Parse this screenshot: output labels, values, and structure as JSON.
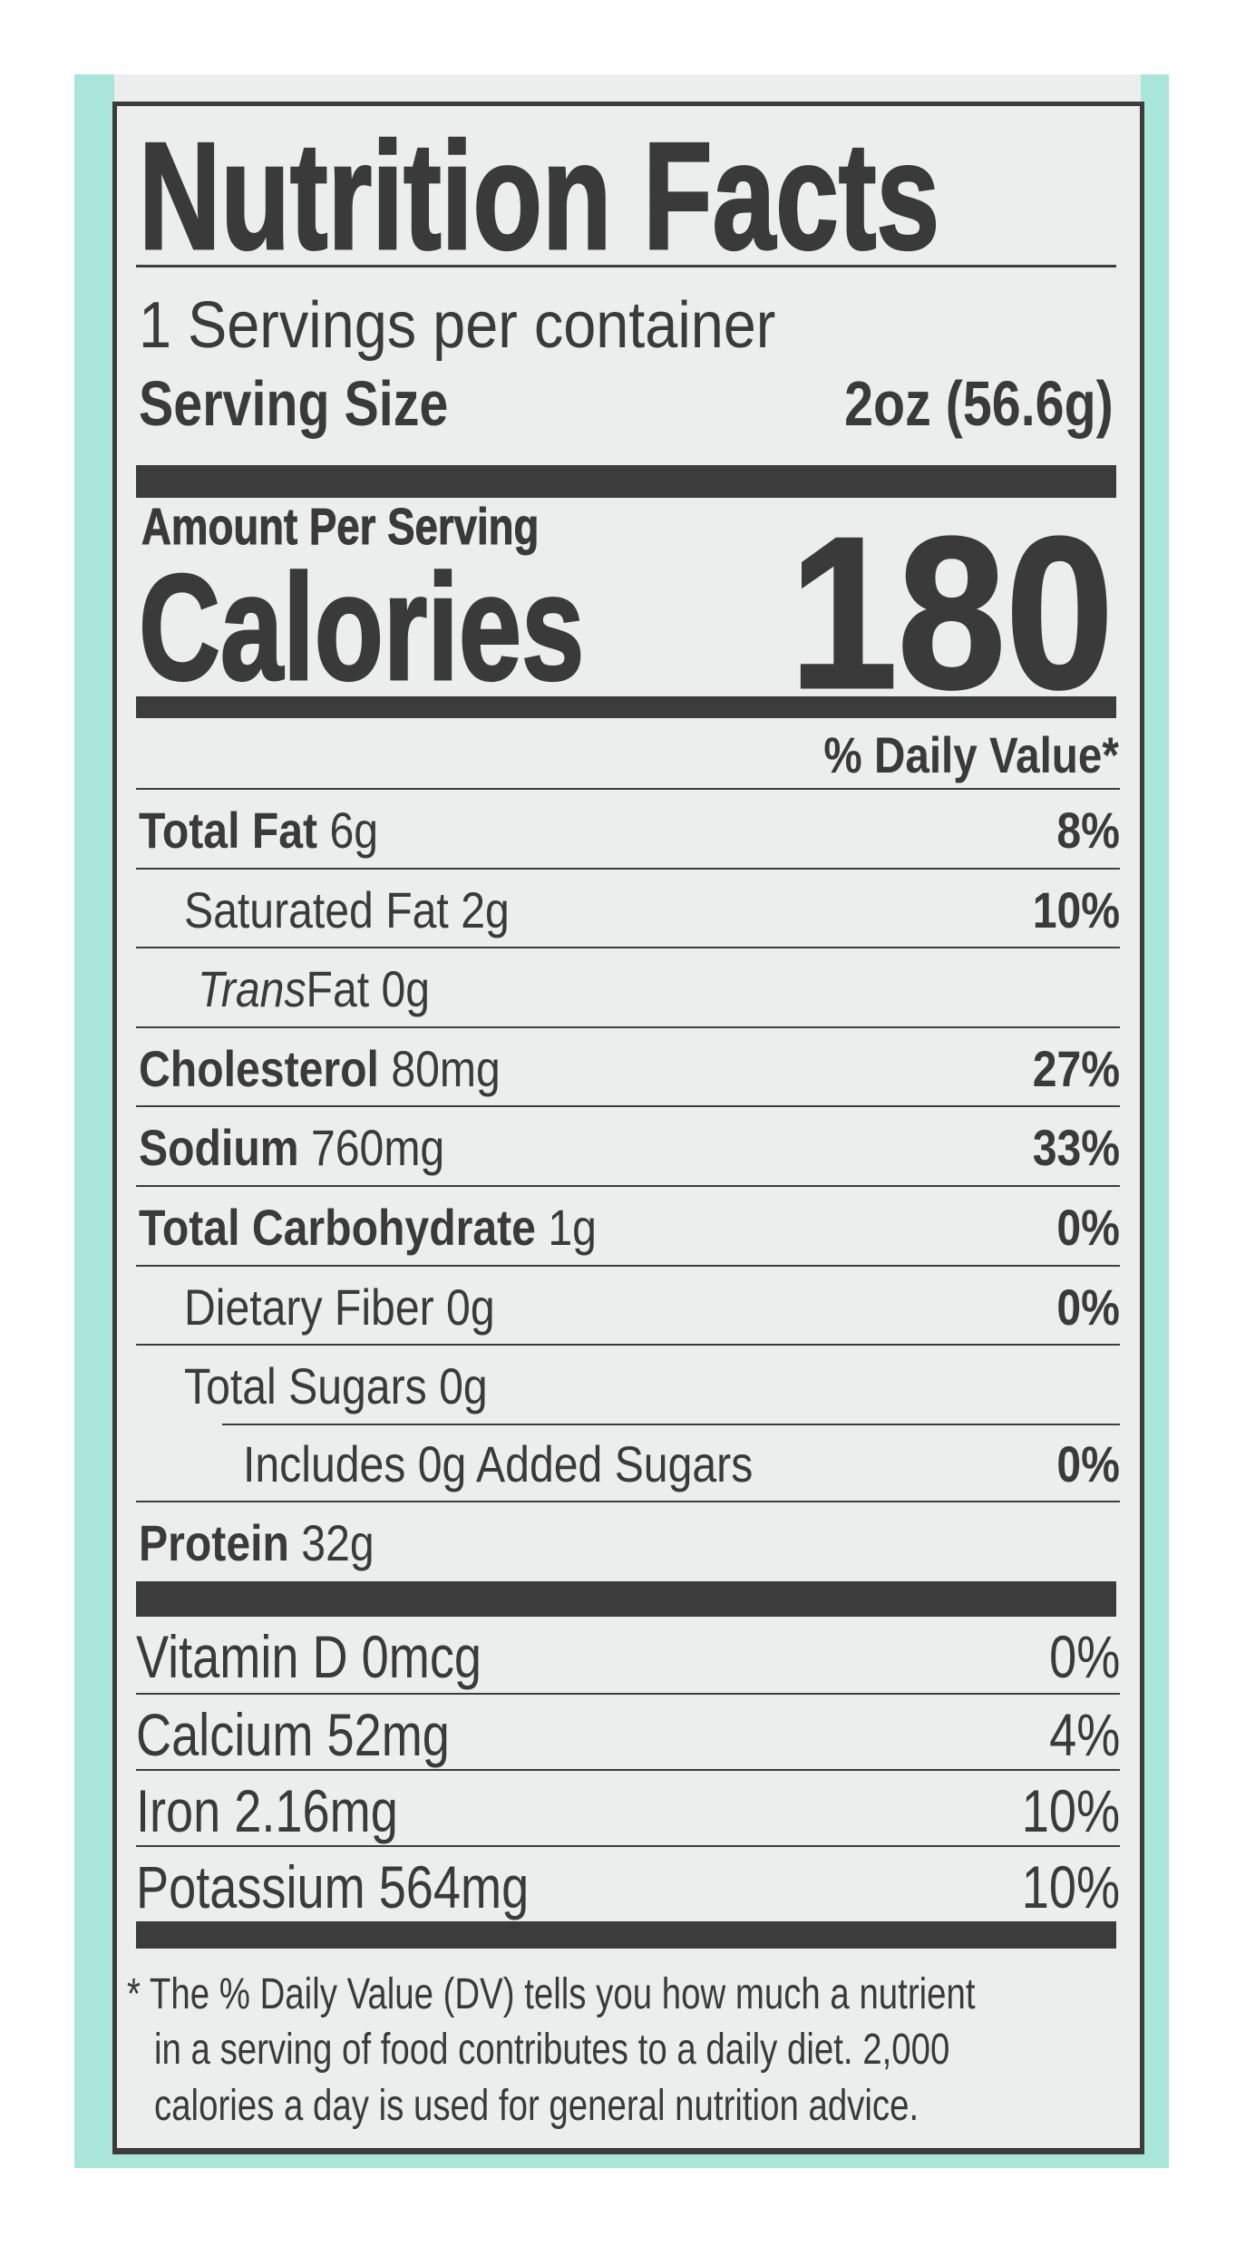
{
  "colors": {
    "background": "#a9e5d8",
    "label": "#eceeed",
    "ink": "#3b3a3a"
  },
  "title": "Nutrition Facts",
  "servings_per_container": "1 Servings per container",
  "serving_size": {
    "label": "Serving Size",
    "value": "2oz (56.6g)"
  },
  "amount_per_serving": "Amount Per Serving",
  "calories": {
    "label": "Calories",
    "value": "180"
  },
  "daily_value_header": "% Daily Value*",
  "nutrients": [
    {
      "name": "Total Fat",
      "amount": "6g",
      "dv": "8%"
    },
    {
      "name": "Saturated Fat",
      "amount": "2g",
      "dv": "10%"
    },
    {
      "name": "Trans",
      "name_rest": "Fat",
      "amount": "0g",
      "dv": ""
    },
    {
      "name": "Cholesterol",
      "amount": "80mg",
      "dv": "27%"
    },
    {
      "name": "Sodium",
      "amount": "760mg",
      "dv": "33%"
    },
    {
      "name": "Total Carbohydrate",
      "amount": "1g",
      "dv": "0%"
    },
    {
      "name": "Dietary Fiber",
      "amount": "0g",
      "dv": "0%"
    },
    {
      "name": "Total Sugars",
      "amount": "0g",
      "dv": ""
    },
    {
      "name": "Includes 0g Added Sugars",
      "amount": "",
      "dv": "0%"
    },
    {
      "name": "Protein",
      "amount": "32g",
      "dv": ""
    }
  ],
  "vitamins": [
    {
      "name": "Vitamin D 0mcg",
      "dv": "0%"
    },
    {
      "name": "Calcium 52mg",
      "dv": "4%"
    },
    {
      "name": "Iron 2.16mg",
      "dv": "10%"
    },
    {
      "name": "Potassium 564mg",
      "dv": "10%"
    }
  ],
  "footnote": [
    "* The % Daily Value (DV) tells you how much a nutrient",
    "in a serving of food contributes to a daily diet. 2,000",
    "calories a day is used for general nutrition advice."
  ]
}
